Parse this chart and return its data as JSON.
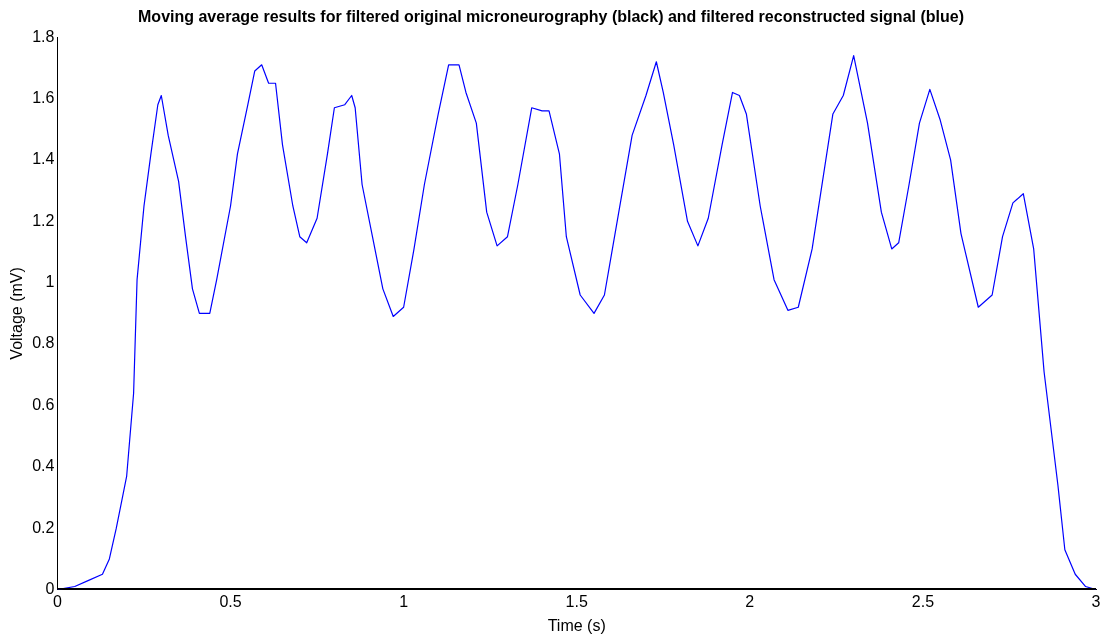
{
  "chart_data": {
    "type": "line",
    "title": "Moving average results for filtered original microneurography (black) and filtered reconstructed signal (blue)",
    "xlabel": "Time (s)",
    "ylabel": "Voltage (mV)",
    "xlim": [
      0,
      3
    ],
    "xticks": [
      0,
      0.5,
      1,
      1.5,
      2,
      2.5,
      3
    ],
    "ylim": [
      0,
      1.8
    ],
    "yticks": [
      0,
      0.2,
      0.4,
      0.6,
      0.8,
      1,
      1.2,
      1.4,
      1.6,
      1.8
    ],
    "grid": false,
    "legend": false,
    "marker": "none",
    "line_style": "solid",
    "series": [
      {
        "color": "#000000",
        "x": [
          0,
          3
        ],
        "values": [
          0,
          0
        ]
      },
      {
        "color": "#0000ff",
        "x": [
          0,
          0.05,
          0.09,
          0.13,
          0.15,
          0.17,
          0.2,
          0.22,
          0.23,
          0.25,
          0.27,
          0.29,
          0.3,
          0.32,
          0.35,
          0.37,
          0.39,
          0.41,
          0.44,
          0.46,
          0.5,
          0.52,
          0.55,
          0.57,
          0.59,
          0.61,
          0.63,
          0.65,
          0.68,
          0.7,
          0.72,
          0.75,
          0.78,
          0.8,
          0.83,
          0.85,
          0.86,
          0.88,
          0.91,
          0.94,
          0.97,
          1.0,
          1.03,
          1.06,
          1.1,
          1.13,
          1.16,
          1.18,
          1.21,
          1.24,
          1.27,
          1.3,
          1.33,
          1.37,
          1.4,
          1.42,
          1.45,
          1.47,
          1.51,
          1.55,
          1.58,
          1.62,
          1.66,
          1.7,
          1.73,
          1.75,
          1.78,
          1.82,
          1.85,
          1.88,
          1.92,
          1.95,
          1.97,
          1.99,
          2.03,
          2.07,
          2.11,
          2.14,
          2.18,
          2.21,
          2.24,
          2.27,
          2.3,
          2.32,
          2.34,
          2.38,
          2.41,
          2.43,
          2.46,
          2.49,
          2.52,
          2.55,
          2.58,
          2.61,
          2.66,
          2.7,
          2.73,
          2.76,
          2.79,
          2.82,
          2.85,
          2.89,
          2.91,
          2.94,
          2.97,
          3
        ],
        "values": [
          0,
          0.01,
          0.03,
          0.05,
          0.1,
          0.2,
          0.37,
          0.64,
          1.01,
          1.25,
          1.42,
          1.58,
          1.61,
          1.48,
          1.33,
          1.15,
          0.98,
          0.9,
          0.9,
          1.01,
          1.25,
          1.42,
          1.58,
          1.69,
          1.71,
          1.65,
          1.65,
          1.45,
          1.25,
          1.15,
          1.13,
          1.21,
          1.42,
          1.57,
          1.58,
          1.61,
          1.57,
          1.32,
          1.15,
          0.98,
          0.89,
          0.92,
          1.11,
          1.32,
          1.55,
          1.71,
          1.71,
          1.62,
          1.52,
          1.23,
          1.12,
          1.15,
          1.32,
          1.57,
          1.56,
          1.56,
          1.42,
          1.15,
          0.96,
          0.9,
          0.96,
          1.22,
          1.48,
          1.61,
          1.72,
          1.62,
          1.45,
          1.2,
          1.12,
          1.21,
          1.45,
          1.62,
          1.61,
          1.55,
          1.25,
          1.01,
          0.91,
          0.92,
          1.11,
          1.33,
          1.55,
          1.61,
          1.74,
          1.63,
          1.52,
          1.23,
          1.11,
          1.13,
          1.32,
          1.52,
          1.63,
          1.53,
          1.4,
          1.16,
          0.92,
          0.96,
          1.15,
          1.26,
          1.29,
          1.11,
          0.71,
          0.34,
          0.13,
          0.05,
          0.01,
          0
        ]
      }
    ]
  }
}
